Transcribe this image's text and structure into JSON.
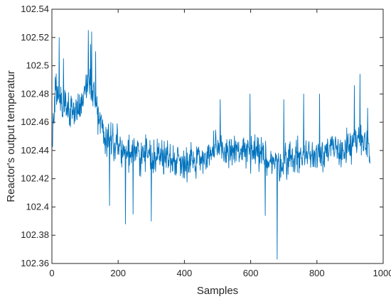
{
  "chart_data": {
    "type": "line",
    "title": "",
    "xlabel": "Samples",
    "ylabel": "Reactor's output temperatur",
    "xlim": [
      0,
      1000
    ],
    "ylim": [
      102.36,
      102.54
    ],
    "xticks": [
      0,
      200,
      400,
      600,
      800,
      1000
    ],
    "yticks": [
      102.36,
      102.38,
      102.4,
      102.42,
      102.44,
      102.46,
      102.48,
      102.5,
      102.52,
      102.54
    ],
    "ytick_labels": [
      "102.36",
      "102.38",
      "102.4",
      "102.42",
      "102.44",
      "102.46",
      "102.48",
      "102.5",
      "102.52",
      "102.54"
    ],
    "grid": false,
    "line_color": "#0072BD",
    "series": [
      {
        "x_start": 1,
        "x_step": 1,
        "count": 960,
        "anchors": [
          [
            1,
            102.44
          ],
          [
            10,
            102.482
          ],
          [
            20,
            102.478
          ],
          [
            30,
            102.475
          ],
          [
            50,
            102.47
          ],
          [
            70,
            102.468
          ],
          [
            90,
            102.475
          ],
          [
            110,
            102.49
          ],
          [
            125,
            102.48
          ],
          [
            140,
            102.465
          ],
          [
            160,
            102.45
          ],
          [
            180,
            102.448
          ],
          [
            200,
            102.445
          ],
          [
            215,
            102.44
          ],
          [
            230,
            102.438
          ],
          [
            260,
            102.437
          ],
          [
            300,
            102.437
          ],
          [
            350,
            102.435
          ],
          [
            400,
            102.432
          ],
          [
            450,
            102.435
          ],
          [
            500,
            102.44
          ],
          [
            550,
            102.44
          ],
          [
            600,
            102.438
          ],
          [
            650,
            102.435
          ],
          [
            680,
            102.43
          ],
          [
            720,
            102.435
          ],
          [
            780,
            102.437
          ],
          [
            820,
            102.44
          ],
          [
            860,
            102.44
          ],
          [
            900,
            102.442
          ],
          [
            930,
            102.447
          ],
          [
            960,
            102.443
          ]
        ],
        "noise_amplitude": 0.018,
        "spikes": [
          [
            22,
            102.52
          ],
          [
            35,
            102.505
          ],
          [
            110,
            102.525
          ],
          [
            117,
            102.515
          ],
          [
            120,
            102.524
          ],
          [
            132,
            102.51
          ],
          [
            174,
            102.401
          ],
          [
            222,
            102.388
          ],
          [
            245,
            102.395
          ],
          [
            300,
            102.39
          ],
          [
            508,
            102.476
          ],
          [
            598,
            102.48
          ],
          [
            644,
            102.394
          ],
          [
            680,
            102.363
          ],
          [
            700,
            102.476
          ],
          [
            760,
            102.48
          ],
          [
            808,
            102.48
          ],
          [
            913,
            102.486
          ],
          [
            930,
            102.494
          ],
          [
            953,
            102.47
          ]
        ]
      }
    ]
  }
}
